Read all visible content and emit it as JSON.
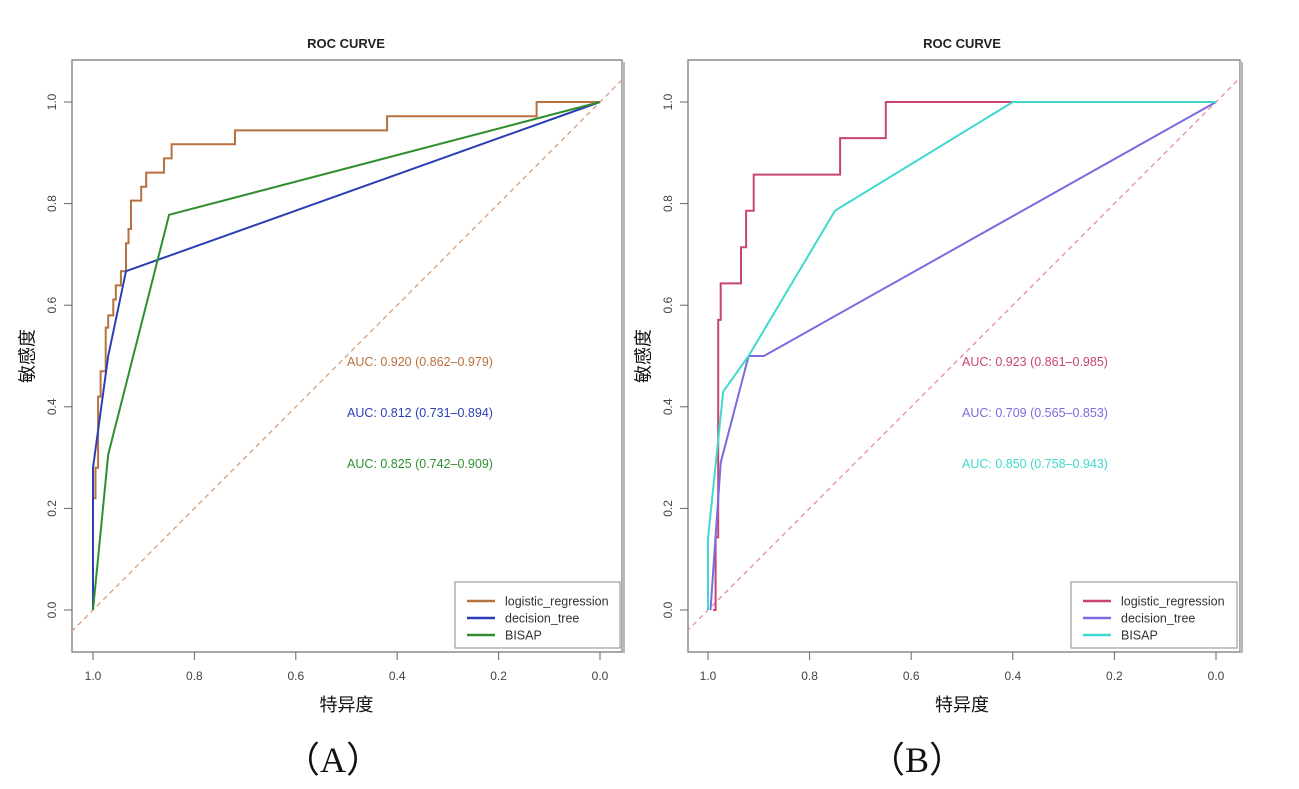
{
  "chart_data": [
    {
      "type": "line",
      "panel_label": "（A）",
      "title": "ROC CURVE",
      "xlabel": "特异度",
      "ylabel": "敏感度",
      "xlim": [
        1.0,
        0.0
      ],
      "ylim": [
        0.0,
        1.0
      ],
      "x_reversed": true,
      "xticks": [
        "1.0",
        "0.8",
        "0.6",
        "0.4",
        "0.2",
        "0.0"
      ],
      "yticks": [
        "0.0",
        "0.2",
        "0.4",
        "0.6",
        "0.8",
        "1.0"
      ],
      "grid": false,
      "legend_position": "bottom-right",
      "reference_line": {
        "color": "#d2a07e",
        "style": "dashed"
      },
      "series": [
        {
          "name": "logistic_regression",
          "color": "#b8703e",
          "auc_text": "AUC: 0.920 (0.862–0.979)",
          "specificity": [
            1.0,
            1.0,
            0.995,
            0.995,
            0.99,
            0.99,
            0.985,
            0.985,
            0.975,
            0.975,
            0.97,
            0.97,
            0.96,
            0.96,
            0.955,
            0.955,
            0.945,
            0.945,
            0.935,
            0.935,
            0.93,
            0.93,
            0.925,
            0.925,
            0.915,
            0.915,
            0.905,
            0.905,
            0.895,
            0.895,
            0.88,
            0.88,
            0.86,
            0.86,
            0.845,
            0.845,
            0.72,
            0.72,
            0.42,
            0.42,
            0.125,
            0.125,
            0.0
          ],
          "sensitivity": [
            0.0,
            0.22,
            0.22,
            0.28,
            0.28,
            0.42,
            0.42,
            0.47,
            0.47,
            0.556,
            0.556,
            0.58,
            0.58,
            0.611,
            0.611,
            0.639,
            0.639,
            0.667,
            0.667,
            0.722,
            0.722,
            0.75,
            0.75,
            0.806,
            0.806,
            0.806,
            0.806,
            0.833,
            0.833,
            0.861,
            0.861,
            0.861,
            0.861,
            0.889,
            0.889,
            0.917,
            0.917,
            0.944,
            0.944,
            0.972,
            0.972,
            1.0,
            1.0
          ]
        },
        {
          "name": "decision_tree",
          "color": "#2b3fb5",
          "auc_text": "AUC: 0.812 (0.731–0.894)",
          "specificity": [
            1.0,
            1.0,
            0.97,
            0.935,
            0.0
          ],
          "sensitivity": [
            0.0,
            0.28,
            0.5,
            0.667,
            1.0
          ]
        },
        {
          "name": "BISAP",
          "color": "#2f8f2f",
          "auc_text": "AUC: 0.825 (0.742–0.909)",
          "specificity": [
            1.0,
            0.97,
            0.85,
            0.0
          ],
          "sensitivity": [
            0.0,
            0.306,
            0.778,
            1.0
          ]
        }
      ]
    },
    {
      "type": "line",
      "panel_label": "（B）",
      "title": "ROC CURVE",
      "xlabel": "特异度",
      "ylabel": "敏感度",
      "xlim": [
        1.0,
        0.0
      ],
      "ylim": [
        0.0,
        1.0
      ],
      "x_reversed": true,
      "xticks": [
        "1.0",
        "0.8",
        "0.6",
        "0.4",
        "0.2",
        "0.0"
      ],
      "yticks": [
        "0.0",
        "0.2",
        "0.4",
        "0.6",
        "0.8",
        "1.0"
      ],
      "grid": false,
      "legend_position": "bottom-right",
      "reference_line": {
        "color": "#e38aa0",
        "style": "dashed"
      },
      "series": [
        {
          "name": "logistic_regression",
          "color": "#c8466e",
          "auc_text": "AUC: 0.923 (0.861–0.985)",
          "specificity": [
            0.99,
            0.985,
            0.985,
            0.98,
            0.98,
            0.975,
            0.975,
            0.965,
            0.965,
            0.935,
            0.935,
            0.925,
            0.925,
            0.91,
            0.91,
            0.74,
            0.74,
            0.65,
            0.65,
            0.4
          ],
          "sensitivity": [
            0.0,
            0.0,
            0.143,
            0.143,
            0.571,
            0.571,
            0.643,
            0.643,
            0.643,
            0.643,
            0.714,
            0.714,
            0.786,
            0.786,
            0.857,
            0.857,
            0.929,
            0.929,
            1.0,
            1.0
          ]
        },
        {
          "name": "decision_tree",
          "color": "#7b6be0",
          "auc_text": "AUC: 0.709 (0.565–0.853)",
          "specificity": [
            0.995,
            0.975,
            0.92,
            0.89,
            0.0
          ],
          "sensitivity": [
            0.0,
            0.29,
            0.5,
            0.5,
            1.0
          ]
        },
        {
          "name": "BISAP",
          "color": "#3fd9cf",
          "auc_text": "AUC: 0.850 (0.758–0.943)",
          "specificity": [
            1.0,
            1.0,
            0.97,
            0.92,
            0.75,
            0.4,
            0.0
          ],
          "sensitivity": [
            0.0,
            0.14,
            0.43,
            0.5,
            0.786,
            1.0,
            1.0
          ]
        }
      ]
    }
  ]
}
